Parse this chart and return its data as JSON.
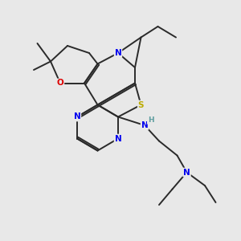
{
  "bg_color": "#e8e8e8",
  "bond_color": "#2a2a2a",
  "atom_colors": {
    "N": "#0000ee",
    "O": "#dd0000",
    "S": "#bbaa00",
    "H": "#5f9ea0",
    "C": "#2a2a2a"
  }
}
